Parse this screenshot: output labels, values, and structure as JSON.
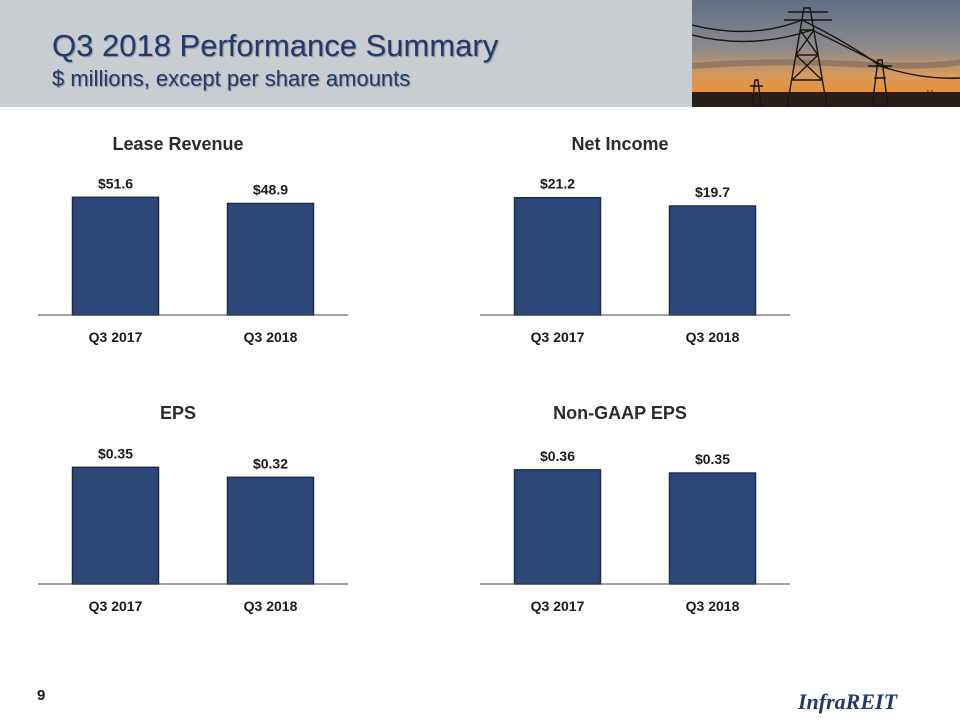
{
  "header": {
    "title": "Q3 2018 Performance Summary",
    "subtitle": "$ millions, except per share amounts"
  },
  "chart_data": [
    {
      "type": "bar",
      "title": "Lease Revenue",
      "categories": [
        "Q3 2017",
        "Q3 2018"
      ],
      "values": [
        51.6,
        48.9
      ],
      "value_labels": [
        "$51.6",
        "$48.9"
      ],
      "ylim": [
        0,
        57
      ]
    },
    {
      "type": "bar",
      "title": "Net Income",
      "categories": [
        "Q3 2017",
        "Q3 2018"
      ],
      "values": [
        21.2,
        19.7
      ],
      "value_labels": [
        "$21.2",
        "$19.7"
      ],
      "ylim": [
        0,
        23.5
      ]
    },
    {
      "type": "bar",
      "title": "EPS",
      "categories": [
        "Q3 2017",
        "Q3 2018"
      ],
      "values": [
        0.35,
        0.32
      ],
      "value_labels": [
        "$0.35",
        "$0.32"
      ],
      "ylim": [
        0,
        0.39
      ]
    },
    {
      "type": "bar",
      "title": "Non-GAAP EPS",
      "categories": [
        "Q3 2017",
        "Q3 2018"
      ],
      "values": [
        0.36,
        0.35
      ],
      "value_labels": [
        "$0.36",
        "$0.35"
      ],
      "ylim": [
        0,
        0.41
      ]
    }
  ],
  "footer": {
    "page_number": "9",
    "logo_text": "InfraREIT"
  },
  "colors": {
    "bar": "#2e4779",
    "header_bg": "#c9ccd0",
    "title": "#1f3a6b"
  }
}
